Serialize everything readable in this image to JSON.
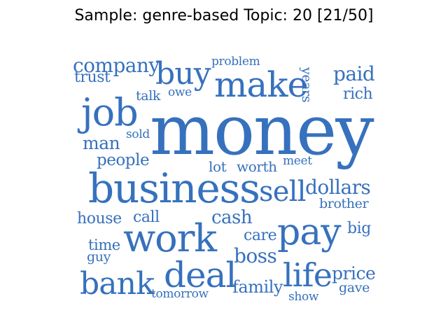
{
  "title": "Sample: genre-based Topic: 20 [21/50]",
  "word_color": "#3671bd",
  "words": [
    {
      "text": "money"
    },
    {
      "text": "business"
    },
    {
      "text": "pay"
    },
    {
      "text": "work"
    },
    {
      "text": "make"
    },
    {
      "text": "job"
    },
    {
      "text": "buy"
    },
    {
      "text": "deal"
    },
    {
      "text": "bank"
    },
    {
      "text": "life"
    },
    {
      "text": "sell"
    },
    {
      "text": "company"
    },
    {
      "text": "dollars"
    },
    {
      "text": "paid"
    },
    {
      "text": "cash"
    },
    {
      "text": "boss"
    },
    {
      "text": "family"
    },
    {
      "text": "price"
    },
    {
      "text": "man"
    },
    {
      "text": "people"
    },
    {
      "text": "house"
    },
    {
      "text": "call"
    },
    {
      "text": "care"
    },
    {
      "text": "big"
    },
    {
      "text": "rich"
    },
    {
      "text": "trust"
    },
    {
      "text": "brother"
    },
    {
      "text": "worth"
    },
    {
      "text": "lot"
    },
    {
      "text": "years"
    },
    {
      "text": "time"
    },
    {
      "text": "guy"
    },
    {
      "text": "gave"
    },
    {
      "text": "talk"
    },
    {
      "text": "problem"
    },
    {
      "text": "meet"
    },
    {
      "text": "show"
    },
    {
      "text": "tomorrow"
    },
    {
      "text": "owe"
    },
    {
      "text": "sold"
    }
  ]
}
